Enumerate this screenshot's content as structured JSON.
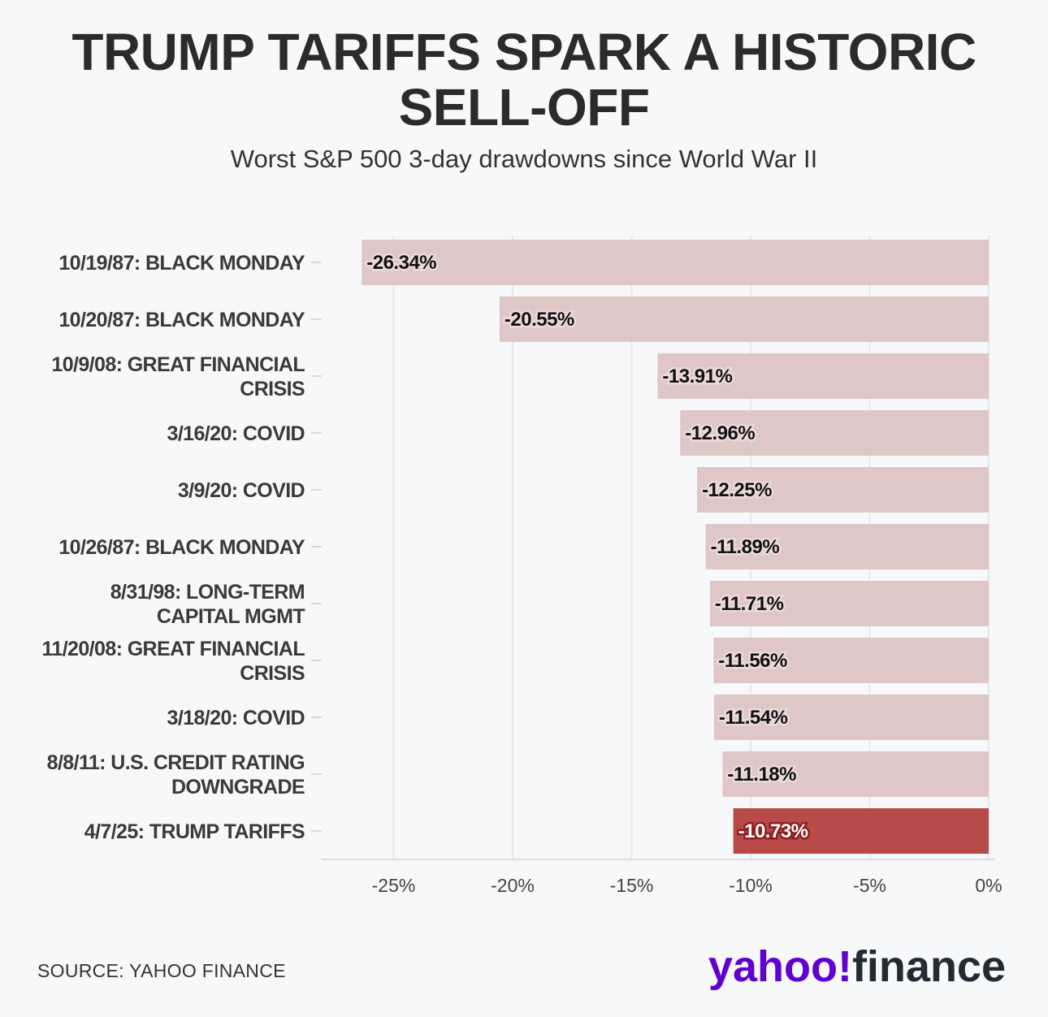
{
  "header": {
    "title_line1": "TRUMP TARIFFS SPARK A HISTORIC",
    "title_line2": "SELL-OFF",
    "subtitle": "Worst S&P 500 3-day drawdowns since World War II"
  },
  "chart_data": {
    "type": "bar",
    "orientation": "horizontal",
    "title": "TRUMP TARIFFS SPARK A HISTORIC SELL-OFF",
    "subtitle": "Worst S&P 500 3-day drawdowns since World War II",
    "categories": [
      [
        "10/19/87: BLACK MONDAY"
      ],
      [
        "10/20/87: BLACK MONDAY"
      ],
      [
        "10/9/08: GREAT FINANCIAL",
        "CRISIS"
      ],
      [
        "3/16/20: COVID"
      ],
      [
        "3/9/20: COVID"
      ],
      [
        "10/26/87: BLACK MONDAY"
      ],
      [
        "8/31/98: LONG-TERM",
        "CAPITAL MGMT"
      ],
      [
        "11/20/08: GREAT FINANCIAL",
        "CRISIS"
      ],
      [
        "3/18/20: COVID"
      ],
      [
        "8/8/11: U.S. CREDIT RATING",
        "DOWNGRADE"
      ],
      [
        "4/7/25: TRUMP TARIFFS"
      ]
    ],
    "values": [
      -26.34,
      -20.55,
      -13.91,
      -12.96,
      -12.25,
      -11.89,
      -11.71,
      -11.56,
      -11.54,
      -11.18,
      -10.73
    ],
    "data_labels": [
      "-26.34%",
      "-20.55%",
      "-13.91%",
      "-12.96%",
      "-12.25%",
      "-11.89%",
      "-11.71%",
      "-11.56%",
      "-11.54%",
      "-11.18%",
      "-10.73%"
    ],
    "highlight_index": 10,
    "xlim": [
      -28,
      0
    ],
    "xticks": [
      -25,
      -20,
      -15,
      -10,
      -5,
      0
    ],
    "xtick_labels": [
      "-25%",
      "-20%",
      "-15%",
      "-10%",
      "-5%",
      "0%"
    ],
    "grid": "vertical",
    "colors": {
      "bar": "#dfc7c8",
      "highlight": "#b84b4a",
      "grid": "#e6e7e9",
      "text": "#2b2b2b"
    }
  },
  "footer": {
    "source": "SOURCE: YAHOO FINANCE",
    "logo_yahoo": "yahoo!",
    "logo_finance": "finance"
  }
}
